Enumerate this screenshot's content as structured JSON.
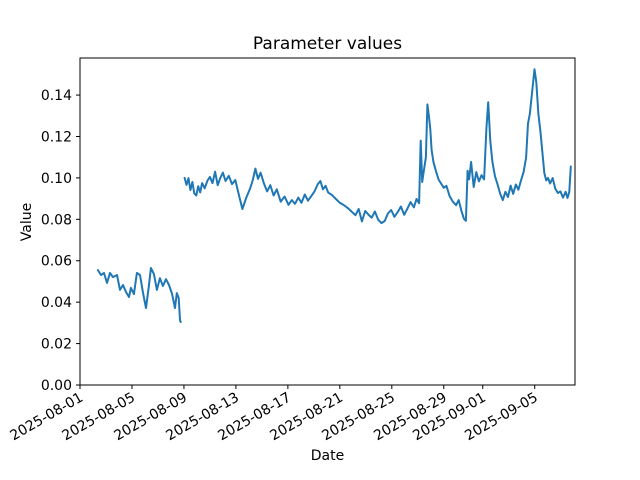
{
  "figure": {
    "background": "#ffffff"
  },
  "chart_data": {
    "type": "line",
    "title": "Parameter values",
    "xlabel": "Date",
    "ylabel": "Value",
    "grid": false,
    "legend": false,
    "line_color": "#1f77b4",
    "axis_color": "#000000",
    "x_axis": {
      "unit": "days since 2025-08-01",
      "tick_labels": [
        "2025-08-01",
        "2025-08-05",
        "2025-08-09",
        "2025-08-13",
        "2025-08-17",
        "2025-08-21",
        "2025-08-25",
        "2025-08-29",
        "2025-09-01",
        "2025-09-05"
      ],
      "tick_day_offsets": [
        0,
        4,
        8,
        12,
        16,
        20,
        24,
        28,
        31,
        35
      ],
      "range_day_offsets": [
        0,
        38.1
      ]
    },
    "y_axis": {
      "tick_labels": [
        "0.00",
        "0.02",
        "0.04",
        "0.06",
        "0.08",
        "0.10",
        "0.12",
        "0.14"
      ],
      "tick_values": [
        0.0,
        0.02,
        0.04,
        0.06,
        0.08,
        0.1,
        0.12,
        0.14
      ],
      "range": [
        0,
        0.1579
      ]
    },
    "series": [
      {
        "segments": [
          [
            [
              1.38,
              0.0555
            ],
            [
              1.62,
              0.0531
            ],
            [
              1.85,
              0.0541
            ],
            [
              2.08,
              0.0493
            ],
            [
              2.31,
              0.0541
            ],
            [
              2.54,
              0.0521
            ],
            [
              2.85,
              0.0531
            ],
            [
              3.08,
              0.0459
            ],
            [
              3.31,
              0.0483
            ],
            [
              3.54,
              0.0449
            ],
            [
              3.77,
              0.0425
            ],
            [
              3.92,
              0.0469
            ],
            [
              4.15,
              0.0439
            ],
            [
              4.38,
              0.0541
            ],
            [
              4.62,
              0.0531
            ],
            [
              4.85,
              0.0445
            ],
            [
              5.08,
              0.0372
            ],
            [
              5.31,
              0.0483
            ],
            [
              5.46,
              0.0565
            ],
            [
              5.69,
              0.0536
            ],
            [
              5.92,
              0.0459
            ],
            [
              6.15,
              0.0516
            ],
            [
              6.38,
              0.0478
            ],
            [
              6.62,
              0.0511
            ],
            [
              6.85,
              0.0483
            ],
            [
              7.08,
              0.0441
            ],
            [
              7.31,
              0.0372
            ],
            [
              7.45,
              0.0444
            ],
            [
              7.6,
              0.042
            ],
            [
              7.7,
              0.0314
            ],
            [
              7.75,
              0.0304
            ]
          ],
          [
            [
              8.05,
              0.1
            ],
            [
              8.2,
              0.0966
            ],
            [
              8.35,
              0.0999
            ],
            [
              8.5,
              0.0941
            ],
            [
              8.65,
              0.098
            ],
            [
              8.8,
              0.0925
            ],
            [
              8.95,
              0.0915
            ],
            [
              9.1,
              0.096
            ],
            [
              9.25,
              0.093
            ],
            [
              9.4,
              0.0975
            ],
            [
              9.6,
              0.095
            ],
            [
              9.8,
              0.0985
            ],
            [
              10.0,
              0.1005
            ],
            [
              10.2,
              0.0975
            ],
            [
              10.4,
              0.103
            ],
            [
              10.6,
              0.0965
            ],
            [
              10.8,
              0.1
            ],
            [
              11.0,
              0.1025
            ],
            [
              11.2,
              0.0985
            ],
            [
              11.45,
              0.101
            ],
            [
              11.7,
              0.097
            ],
            [
              11.95,
              0.099
            ],
            [
              12.2,
              0.0925
            ],
            [
              12.5,
              0.085
            ],
            [
              12.8,
              0.0905
            ],
            [
              13.1,
              0.095
            ],
            [
              13.3,
              0.099
            ],
            [
              13.5,
              0.1045
            ],
            [
              13.7,
              0.0995
            ],
            [
              13.9,
              0.1025
            ],
            [
              14.15,
              0.0975
            ],
            [
              14.4,
              0.0935
            ],
            [
              14.65,
              0.0965
            ],
            [
              14.9,
              0.0915
            ],
            [
              15.15,
              0.0945
            ],
            [
              15.45,
              0.0885
            ],
            [
              15.75,
              0.091
            ],
            [
              16.05,
              0.087
            ],
            [
              16.3,
              0.0893
            ],
            [
              16.55,
              0.0875
            ],
            [
              16.8,
              0.0905
            ],
            [
              17.05,
              0.088
            ],
            [
              17.3,
              0.092
            ],
            [
              17.55,
              0.089
            ],
            [
              17.8,
              0.0912
            ],
            [
              18.05,
              0.0935
            ],
            [
              18.3,
              0.097
            ],
            [
              18.5,
              0.0985
            ],
            [
              18.7,
              0.0945
            ],
            [
              18.9,
              0.0962
            ],
            [
              19.1,
              0.093
            ],
            [
              19.4,
              0.0917
            ],
            [
              19.7,
              0.0898
            ],
            [
              20.0,
              0.088
            ],
            [
              20.3,
              0.0869
            ],
            [
              20.6,
              0.0855
            ],
            [
              20.9,
              0.0838
            ],
            [
              21.2,
              0.082
            ],
            [
              21.45,
              0.085
            ],
            [
              21.7,
              0.079
            ],
            [
              21.95,
              0.084
            ],
            [
              22.2,
              0.0823
            ],
            [
              22.45,
              0.0808
            ],
            [
              22.7,
              0.0838
            ],
            [
              22.95,
              0.0798
            ],
            [
              23.2,
              0.0782
            ],
            [
              23.45,
              0.0792
            ],
            [
              23.7,
              0.0828
            ],
            [
              23.95,
              0.0845
            ],
            [
              24.2,
              0.0812
            ],
            [
              24.45,
              0.0835
            ],
            [
              24.7,
              0.0862
            ],
            [
              24.95,
              0.0822
            ],
            [
              25.2,
              0.0852
            ],
            [
              25.45,
              0.0883
            ],
            [
              25.7,
              0.0858
            ],
            [
              25.9,
              0.0898
            ],
            [
              26.1,
              0.0878
            ],
            [
              26.22,
              0.118
            ],
            [
              26.34,
              0.098
            ],
            [
              26.48,
              0.104
            ],
            [
              26.62,
              0.11
            ],
            [
              26.74,
              0.1355
            ],
            [
              26.86,
              0.1295
            ],
            [
              26.96,
              0.1235
            ],
            [
              27.06,
              0.1135
            ],
            [
              27.2,
              0.1078
            ],
            [
              27.4,
              0.1032
            ],
            [
              27.6,
              0.0992
            ],
            [
              27.8,
              0.0972
            ],
            [
              28.0,
              0.0952
            ],
            [
              28.2,
              0.0962
            ],
            [
              28.45,
              0.0912
            ],
            [
              28.7,
              0.0885
            ],
            [
              28.95,
              0.0868
            ],
            [
              29.15,
              0.0893
            ],
            [
              29.35,
              0.0843
            ],
            [
              29.55,
              0.0803
            ],
            [
              29.7,
              0.0793
            ],
            [
              29.83,
              0.1035
            ],
            [
              29.95,
              0.0993
            ],
            [
              30.1,
              0.1077
            ],
            [
              30.3,
              0.0956
            ],
            [
              30.5,
              0.1028
            ],
            [
              30.7,
              0.0983
            ],
            [
              30.9,
              0.1013
            ],
            [
              31.1,
              0.0993
            ],
            [
              31.28,
              0.1238
            ],
            [
              31.42,
              0.1365
            ],
            [
              31.58,
              0.1178
            ],
            [
              31.74,
              0.1078
            ],
            [
              31.94,
              0.1008
            ],
            [
              32.14,
              0.0968
            ],
            [
              32.34,
              0.0923
            ],
            [
              32.54,
              0.0893
            ],
            [
              32.74,
              0.0933
            ],
            [
              32.94,
              0.0908
            ],
            [
              33.14,
              0.0963
            ],
            [
              33.34,
              0.0923
            ],
            [
              33.54,
              0.0968
            ],
            [
              33.74,
              0.0943
            ],
            [
              33.94,
              0.0988
            ],
            [
              34.14,
              0.1028
            ],
            [
              34.34,
              0.1098
            ],
            [
              34.48,
              0.1262
            ],
            [
              34.62,
              0.1308
            ],
            [
              34.82,
              0.1428
            ],
            [
              34.98,
              0.1525
            ],
            [
              35.12,
              0.1462
            ],
            [
              35.28,
              0.1308
            ],
            [
              35.44,
              0.1225
            ],
            [
              35.58,
              0.1128
            ],
            [
              35.74,
              0.1024
            ],
            [
              35.88,
              0.0988
            ],
            [
              36.02,
              0.1
            ],
            [
              36.18,
              0.0973
            ],
            [
              36.38,
              0.0999
            ],
            [
              36.58,
              0.0948
            ],
            [
              36.78,
              0.0927
            ],
            [
              36.98,
              0.0935
            ],
            [
              37.18,
              0.0905
            ],
            [
              37.38,
              0.0933
            ],
            [
              37.52,
              0.0903
            ],
            [
              37.66,
              0.0933
            ],
            [
              37.78,
              0.1055
            ]
          ]
        ]
      }
    ]
  }
}
